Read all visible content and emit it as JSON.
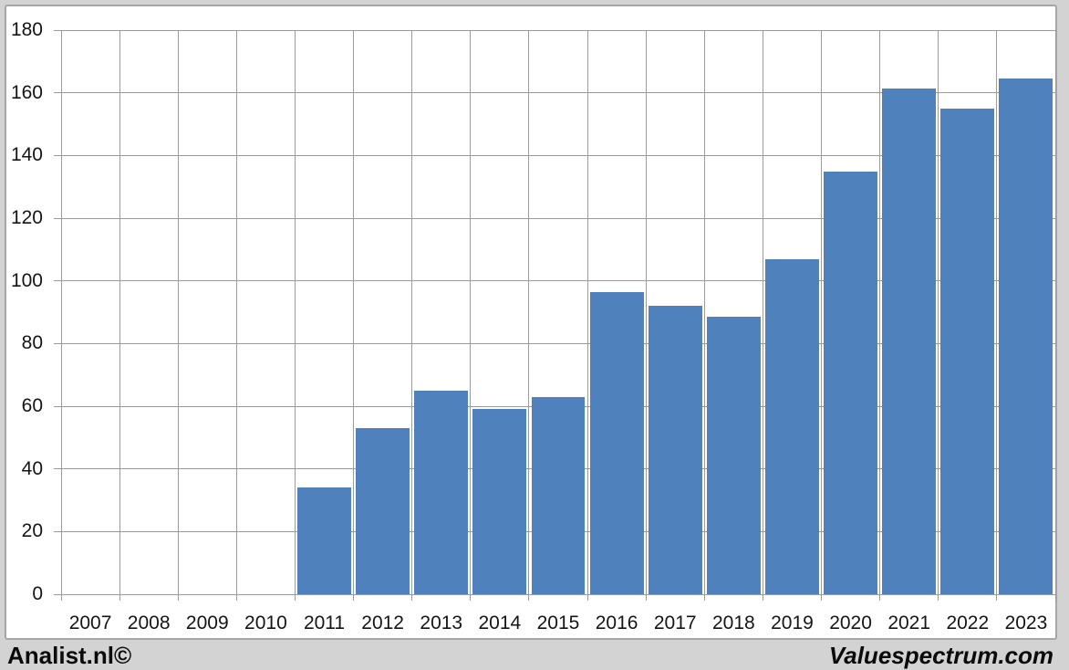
{
  "chart_data": {
    "type": "bar",
    "title": "",
    "xlabel": "",
    "ylabel": "",
    "categories": [
      "2007",
      "2008",
      "2009",
      "2010",
      "2011",
      "2012",
      "2013",
      "2014",
      "2015",
      "2016",
      "2017",
      "2018",
      "2019",
      "2020",
      "2021",
      "2022",
      "2023"
    ],
    "values": [
      0,
      0,
      0,
      0,
      34,
      53,
      65,
      59,
      63,
      96.5,
      92,
      88.5,
      107,
      135,
      161.5,
      155,
      164.5
    ],
    "ylim": [
      0,
      180
    ],
    "ytick_step": 20,
    "yticks": [
      0,
      20,
      40,
      60,
      80,
      100,
      120,
      140,
      160,
      180
    ],
    "grid": true,
    "legend_position": "none",
    "bar_color": "#4f81bd",
    "gridline_color": "#9a9a9a",
    "plot_background": "#ffffff",
    "page_background": "#d3d3d3"
  },
  "footer": {
    "left_brand": "Analist.nl©",
    "right_brand": "Valuespectrum.com"
  }
}
